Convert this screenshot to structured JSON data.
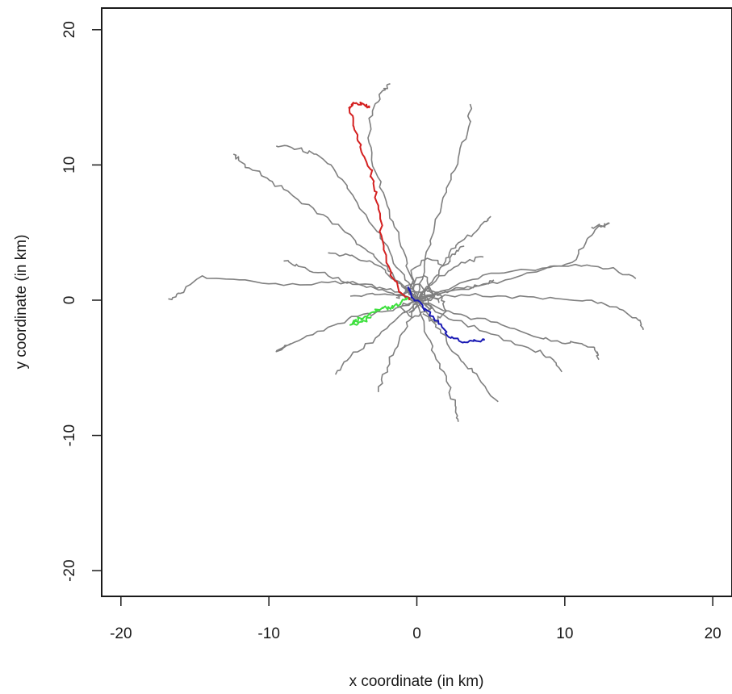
{
  "chart_data": {
    "type": "line",
    "title": "",
    "xlabel": "x coordinate (in km)",
    "ylabel": "y coordinate (in km)",
    "xlim": [
      -21.3,
      21.3
    ],
    "ylim": [
      -21.9,
      21.6
    ],
    "x_ticks": [
      -20,
      -10,
      0,
      10,
      20
    ],
    "y_ticks": [
      -20,
      -10,
      0,
      10,
      20
    ],
    "x_tick_labels": [
      "-20",
      "-10",
      "0",
      "10",
      "20"
    ],
    "y_tick_labels": [
      "-20",
      "-10",
      "0",
      "10",
      "20"
    ],
    "grid": false,
    "legend": "none",
    "colors": {
      "background": "#ffffff",
      "axis": "#1a1a1a",
      "tracks": "#7f7f7f",
      "highlight_red": "#d42020",
      "highlight_blue": "#1a1ab4",
      "highlight_green": "#3ee03e"
    },
    "series": [
      {
        "color": "#7f7f7f",
        "x": [
          0.0,
          -1.5,
          -3.5,
          -6.0,
          -9.0,
          -12.0,
          -14.5,
          -16.0,
          -16.8
        ],
        "y": [
          0.0,
          0.6,
          1.2,
          1.3,
          1.1,
          1.5,
          1.8,
          0.5,
          0.1
        ]
      },
      {
        "color": "#7f7f7f",
        "x": [
          0.0,
          -1.0,
          -2.0,
          -3.5,
          -5.0,
          -7.0,
          -9.0,
          -10.5,
          -12.0,
          -12.4
        ],
        "y": [
          0.0,
          1.0,
          2.5,
          3.8,
          5.2,
          6.8,
          8.2,
          9.2,
          10.3,
          10.8
        ]
      },
      {
        "color": "#7f7f7f",
        "x": [
          0.0,
          -0.8,
          -1.8,
          -3.0,
          -4.2,
          -5.5,
          -6.8,
          -8.0,
          -9.5
        ],
        "y": [
          0.0,
          1.5,
          3.5,
          5.5,
          7.5,
          9.5,
          10.8,
          11.2,
          11.4
        ]
      },
      {
        "color": "#7f7f7f",
        "x": [
          0.0,
          -0.5,
          -1.2,
          -2.0,
          -2.8,
          -3.3,
          -3.0,
          -2.3,
          -1.8
        ],
        "y": [
          0.0,
          2.0,
          4.5,
          7.0,
          9.5,
          12.0,
          14.0,
          15.5,
          16.0
        ]
      },
      {
        "color": "#7f7f7f",
        "x": [
          0.0,
          0.5,
          1.2,
          2.0,
          2.8,
          3.5,
          3.6
        ],
        "y": [
          0.0,
          2.5,
          5.5,
          8.0,
          10.5,
          12.8,
          14.5
        ]
      },
      {
        "color": "#7f7f7f",
        "x": [
          0.0,
          0.8,
          1.5,
          2.2,
          3.2,
          4.3,
          5.0
        ],
        "y": [
          0.0,
          1.0,
          2.2,
          3.5,
          4.5,
          5.5,
          6.2
        ]
      },
      {
        "color": "#7f7f7f",
        "x": [
          0.0,
          2.5,
          5.0,
          8.0,
          10.5,
          11.5,
          12.5,
          13.0,
          11.8
        ],
        "y": [
          0.0,
          1.0,
          2.0,
          2.2,
          2.8,
          4.5,
          5.5,
          5.7,
          5.4
        ]
      },
      {
        "color": "#7f7f7f",
        "x": [
          0.0,
          3.0,
          6.0,
          9.0,
          11.5,
          13.5,
          14.8
        ],
        "y": [
          0.0,
          0.8,
          1.5,
          2.5,
          2.6,
          2.2,
          1.6
        ]
      },
      {
        "color": "#7f7f7f",
        "x": [
          0.0,
          3.0,
          6.0,
          9.0,
          11.5,
          13.5,
          15.0,
          15.3
        ],
        "y": [
          0.0,
          0.4,
          0.3,
          0.2,
          0.0,
          -0.5,
          -1.5,
          -2.2
        ]
      },
      {
        "color": "#7f7f7f",
        "x": [
          0.0,
          2.5,
          5.0,
          7.5,
          9.5,
          11.0,
          12.0,
          12.3
        ],
        "y": [
          0.0,
          -1.0,
          -1.6,
          -2.5,
          -3.0,
          -3.2,
          -3.5,
          -4.4
        ]
      },
      {
        "color": "#7f7f7f",
        "x": [
          0.0,
          2.5,
          5.0,
          7.5,
          9.0,
          9.8
        ],
        "y": [
          0.0,
          -1.5,
          -2.5,
          -3.5,
          -4.2,
          -5.3
        ]
      },
      {
        "color": "#7f7f7f",
        "x": [
          0.0,
          1.0,
          2.0,
          3.0,
          4.2,
          5.5
        ],
        "y": [
          0.0,
          -1.5,
          -3.0,
          -4.5,
          -5.8,
          -7.5
        ]
      },
      {
        "color": "#7f7f7f",
        "x": [
          0.0,
          0.5,
          1.2,
          2.0,
          2.6,
          2.8
        ],
        "y": [
          0.0,
          -2.0,
          -4.0,
          -6.0,
          -7.8,
          -9.0
        ]
      },
      {
        "color": "#7f7f7f",
        "x": [
          0.0,
          -0.5,
          -1.2,
          -2.0,
          -2.6
        ],
        "y": [
          0.0,
          -1.5,
          -3.0,
          -5.0,
          -6.8
        ]
      },
      {
        "color": "#7f7f7f",
        "x": [
          0.0,
          -1.2,
          -2.8,
          -4.5,
          -5.5
        ],
        "y": [
          0.0,
          -1.2,
          -2.8,
          -4.2,
          -5.5
        ]
      },
      {
        "color": "#7f7f7f",
        "x": [
          0.0,
          -2.0,
          -4.0,
          -6.0,
          -8.0,
          -9.5,
          -8.5
        ],
        "y": [
          0.0,
          -0.8,
          -1.2,
          -2.0,
          -3.0,
          -3.8,
          -3.2
        ]
      },
      {
        "color": "#7f7f7f",
        "x": [
          0.0,
          -2.0,
          -4.0,
          -6.0,
          -8.0,
          -9.0
        ],
        "y": [
          0.0,
          0.6,
          1.2,
          1.8,
          2.5,
          2.9
        ]
      },
      {
        "color": "#7f7f7f",
        "x": [
          0.0,
          -1.5,
          -3.0,
          -4.5,
          -6.0
        ],
        "y": [
          0.0,
          1.5,
          2.8,
          3.3,
          3.5
        ]
      },
      {
        "color": "#7f7f7f",
        "x": [
          0.0,
          -1.5,
          -3.0,
          -4.5
        ],
        "y": [
          0.0,
          0.4,
          0.5,
          0.3
        ]
      },
      {
        "color": "#7f7f7f",
        "x": [
          0.0,
          1.5,
          3.0,
          4.5,
          5.2
        ],
        "y": [
          0.0,
          0.6,
          0.9,
          1.2,
          1.5
        ]
      },
      {
        "color": "#7f7f7f",
        "x": [
          0.0,
          1.5,
          3.0,
          4.5
        ],
        "y": [
          0.0,
          1.8,
          2.8,
          3.2
        ]
      },
      {
        "color": "#7f7f7f",
        "x": [
          0.0,
          -0.8,
          0.5,
          1.2,
          -0.5,
          0.3
        ],
        "y": [
          0.0,
          1.0,
          1.8,
          0.3,
          -0.9,
          0.6
        ]
      },
      {
        "color": "#7f7f7f",
        "x": [
          0.0,
          1.0,
          0.2,
          -1.0,
          0.8,
          1.5
        ],
        "y": [
          0.0,
          -0.6,
          1.2,
          0.4,
          0.9,
          -0.2
        ]
      },
      {
        "color": "#7f7f7f",
        "x": [
          0.0,
          -1.2,
          -0.3,
          0.9,
          -0.6,
          -1.4
        ],
        "y": [
          0.0,
          -0.5,
          -1.3,
          -0.7,
          0.7,
          0.2
        ]
      },
      {
        "color": "#7f7f7f",
        "x": [
          0.0,
          0.6,
          1.6,
          2.0,
          1.2,
          0.4
        ],
        "y": [
          0.0,
          0.8,
          0.4,
          -0.8,
          -1.6,
          -1.0
        ]
      },
      {
        "color": "#7f7f7f",
        "x": [
          0.0,
          -0.4,
          0.7,
          1.9,
          2.6,
          3.2
        ],
        "y": [
          0.0,
          2.2,
          3.1,
          2.6,
          3.4,
          4.0
        ]
      },
      {
        "color": "#d42020",
        "x": [
          -0.5,
          -1.2,
          -1.9,
          -2.4,
          -2.6,
          -2.9,
          -3.4,
          -4.0,
          -4.3,
          -4.5,
          -4.3,
          -3.6,
          -3.2
        ],
        "y": [
          0.0,
          0.6,
          2.5,
          4.8,
          7.0,
          8.8,
          10.2,
          11.8,
          13.2,
          14.3,
          14.6,
          14.5,
          14.2
        ]
      },
      {
        "color": "#1a1ab4",
        "x": [
          -0.6,
          -0.3,
          0.4,
          1.1,
          1.7,
          2.3,
          3.2,
          4.0,
          4.6
        ],
        "y": [
          1.0,
          0.2,
          -0.5,
          -1.2,
          -2.0,
          -2.8,
          -3.1,
          -3.0,
          -2.9
        ]
      },
      {
        "color": "#3ee03e",
        "x": [
          -0.6,
          -1.1,
          -1.6,
          -2.3,
          -2.9,
          -3.6,
          -4.2,
          -4.4,
          -3.7,
          -3.1
        ],
        "y": [
          0.2,
          -0.2,
          -0.5,
          -0.6,
          -0.9,
          -1.3,
          -1.5,
          -1.8,
          -1.6,
          -1.2
        ]
      }
    ]
  }
}
